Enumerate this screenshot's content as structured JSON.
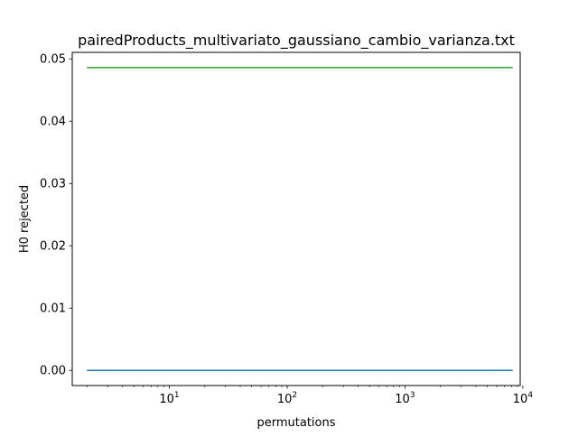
{
  "chart_data": {
    "type": "line",
    "title": "pairedProducts_multivariato_gaussiano_cambio_varianza.txt",
    "xlabel": "permutations",
    "ylabel": "H0 rejected",
    "xscale": "log",
    "xlim": [
      1.5,
      9500
    ],
    "ylim": [
      -0.00243,
      0.05105
    ],
    "x_ticks": [
      {
        "value": 10,
        "base": "10",
        "exp": "1"
      },
      {
        "value": 100,
        "base": "10",
        "exp": "2"
      },
      {
        "value": 1000,
        "base": "10",
        "exp": "3"
      },
      {
        "value": 10000,
        "base": "10",
        "exp": "4"
      }
    ],
    "y_ticks": [
      {
        "value": 0.0,
        "label": "0.00"
      },
      {
        "value": 0.01,
        "label": "0.01"
      },
      {
        "value": 0.02,
        "label": "0.02"
      },
      {
        "value": 0.03,
        "label": "0.03"
      },
      {
        "value": 0.04,
        "label": "0.04"
      },
      {
        "value": 0.05,
        "label": "0.05"
      }
    ],
    "grid": false,
    "legend": "none",
    "series": [
      {
        "color": "#1f77b4",
        "x": [
          2,
          8192
        ],
        "y": [
          0.0,
          0.0
        ]
      },
      {
        "color": "#2ca02c",
        "x": [
          2,
          8192
        ],
        "y": [
          0.0486,
          0.0486
        ]
      }
    ]
  }
}
